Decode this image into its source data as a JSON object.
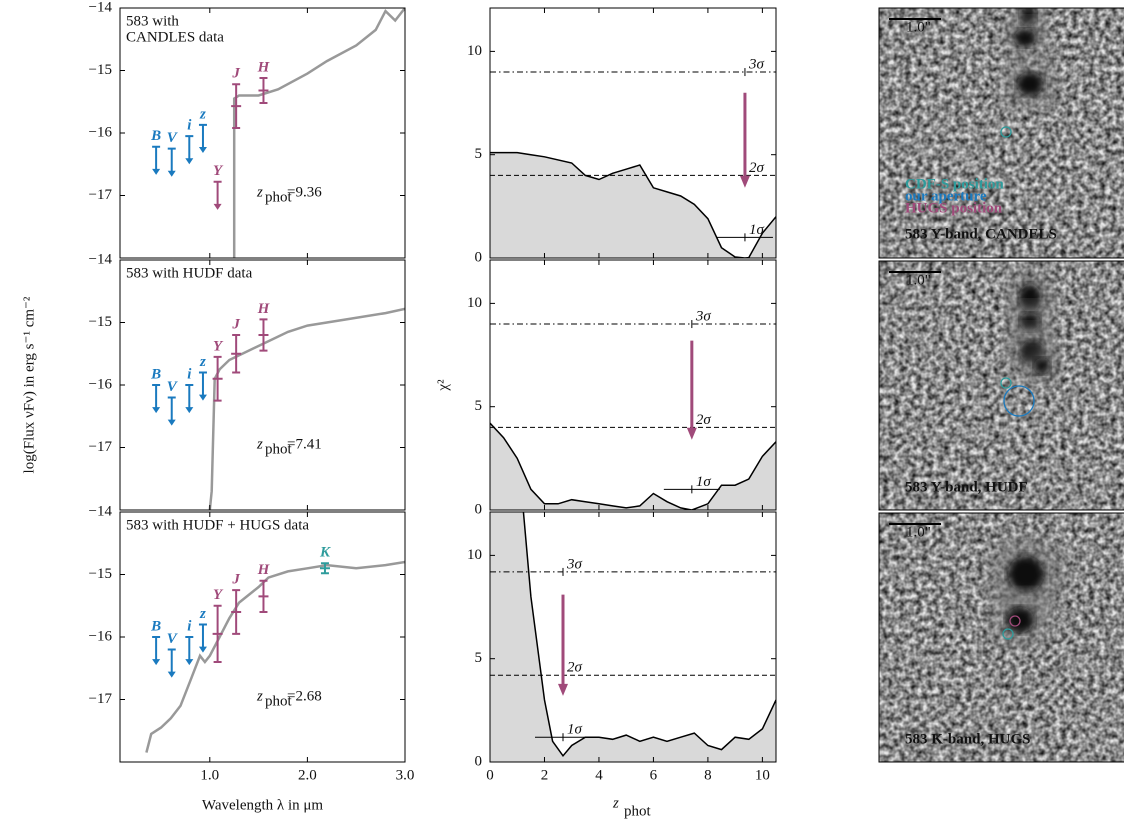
{
  "chart_data": [
    {
      "type": "line",
      "title": [
        "583 with",
        "CANDLES data"
      ],
      "color": "#999999",
      "x": [
        1.25,
        1.25,
        1.3,
        1.5,
        1.7,
        2.0,
        2.2,
        2.5,
        2.7,
        2.8,
        2.9,
        3.0
      ],
      "values": [
        -18,
        -15.45,
        -15.4,
        -15.4,
        -15.3,
        -15.05,
        -14.85,
        -14.6,
        -14.35,
        -14.05,
        -14.2,
        -14.0
      ],
      "xlim": [
        0.08,
        3.0
      ],
      "xticks": [
        1,
        2,
        3
      ],
      "ylim": [
        -18,
        -14
      ],
      "yticks": [
        {
          "value": -17,
          "label": "−17"
        },
        {
          "value": -16,
          "label": "−16"
        },
        {
          "value": -15,
          "label": "−15"
        },
        {
          "value": -14,
          "label": "−14"
        }
      ],
      "limits": [
        {
          "band": "B",
          "x": 0.45,
          "value": -16.22,
          "color": "#1a7abf"
        },
        {
          "band": "V",
          "x": 0.61,
          "value": -16.25,
          "color": "#1a7abf"
        },
        {
          "band": "i",
          "x": 0.79,
          "value": -16.05,
          "color": "#1a7abf"
        },
        {
          "band": "z",
          "x": 0.93,
          "value": -15.87,
          "color": "#1a7abf"
        },
        {
          "band": "Y",
          "x": 1.08,
          "value": -16.78,
          "color": "#a04a7a"
        }
      ],
      "detections": [
        {
          "band": "J",
          "x": 1.27,
          "value": -15.57,
          "error": 0.35,
          "color": "#a04a7a"
        },
        {
          "band": "H",
          "x": 1.55,
          "value": -15.32,
          "error": 0.2,
          "color": "#a04a7a"
        }
      ],
      "zphot": {
        "symbol": "z",
        "sub": "phot",
        "text": "=9.36"
      }
    },
    {
      "type": "line",
      "title": [
        "583 with HUDF data"
      ],
      "color": "#999999",
      "x": [
        1.0,
        1.02,
        1.05,
        1.1,
        1.2,
        1.4,
        1.6,
        1.8,
        2.0,
        2.4,
        2.8,
        3.0
      ],
      "values": [
        -18,
        -17.7,
        -15.9,
        -15.75,
        -15.6,
        -15.45,
        -15.3,
        -15.15,
        -15.05,
        -14.95,
        -14.85,
        -14.78
      ],
      "xlim": [
        0.08,
        3.0
      ],
      "xticks": [
        1,
        2,
        3
      ],
      "ylim": [
        -18,
        -14
      ],
      "yticks": [
        {
          "value": -17,
          "label": "−17"
        },
        {
          "value": -16,
          "label": "−16"
        },
        {
          "value": -15,
          "label": "−15"
        },
        {
          "value": -14,
          "label": "−14"
        }
      ],
      "y_label": "log(Flux νFν) in erg s⁻¹ cm⁻²",
      "limits": [
        {
          "band": "B",
          "x": 0.45,
          "value": -16.0,
          "color": "#1a7abf"
        },
        {
          "band": "V",
          "x": 0.61,
          "value": -16.2,
          "color": "#1a7abf"
        },
        {
          "band": "i",
          "x": 0.79,
          "value": -16.0,
          "color": "#1a7abf"
        },
        {
          "band": "z",
          "x": 0.93,
          "value": -15.8,
          "color": "#1a7abf"
        }
      ],
      "detections": [
        {
          "band": "Y",
          "x": 1.08,
          "value": -15.9,
          "error": 0.35,
          "color": "#a04a7a"
        },
        {
          "band": "J",
          "x": 1.27,
          "value": -15.5,
          "error": 0.3,
          "color": "#a04a7a"
        },
        {
          "band": "H",
          "x": 1.55,
          "value": -15.2,
          "error": 0.25,
          "color": "#a04a7a"
        }
      ],
      "zphot": {
        "symbol": "z",
        "sub": "phot",
        "text": "=7.41"
      }
    },
    {
      "type": "line",
      "title": [
        "583 with HUDF + HUGS data"
      ],
      "color": "#999999",
      "x": [
        0.35,
        0.4,
        0.5,
        0.6,
        0.7,
        0.8,
        0.9,
        0.95,
        1.0,
        1.1,
        1.2,
        1.3,
        1.5,
        1.6,
        1.8,
        2.0,
        2.2,
        2.5,
        2.8,
        3.0
      ],
      "values": [
        -17.85,
        -17.55,
        -17.45,
        -17.3,
        -17.1,
        -16.7,
        -16.3,
        -16.4,
        -16.3,
        -16.0,
        -15.7,
        -15.45,
        -15.2,
        -15.05,
        -14.95,
        -14.9,
        -14.85,
        -14.9,
        -14.85,
        -14.8
      ],
      "xlim": [
        0.08,
        3.0
      ],
      "xticks": [
        {
          "value": 1,
          "label": "1.0"
        },
        {
          "value": 2,
          "label": "2.0"
        },
        {
          "value": 3,
          "label": "3.0"
        }
      ],
      "ylim": [
        -18,
        -14
      ],
      "yticks": [
        {
          "value": -17,
          "label": "−17"
        },
        {
          "value": -16,
          "label": "−16"
        },
        {
          "value": -15,
          "label": "−15"
        },
        {
          "value": -14,
          "label": "−14"
        }
      ],
      "x_label": "Wavelength λ in μm",
      "limits": [
        {
          "band": "B",
          "x": 0.45,
          "value": -16.0,
          "color": "#1a7abf"
        },
        {
          "band": "V",
          "x": 0.61,
          "value": -16.2,
          "color": "#1a7abf"
        },
        {
          "band": "i",
          "x": 0.79,
          "value": -16.0,
          "color": "#1a7abf"
        },
        {
          "band": "z",
          "x": 0.93,
          "value": -15.8,
          "color": "#1a7abf"
        }
      ],
      "detections": [
        {
          "band": "Y",
          "x": 1.08,
          "value": -15.95,
          "error": 0.45,
          "color": "#a04a7a"
        },
        {
          "band": "J",
          "x": 1.27,
          "value": -15.6,
          "error": 0.35,
          "color": "#a04a7a"
        },
        {
          "band": "H",
          "x": 1.55,
          "value": -15.35,
          "error": 0.25,
          "color": "#a04a7a"
        },
        {
          "band": "K",
          "x": 2.18,
          "value": -14.9,
          "error": 0.08,
          "color": "#2e9c9c"
        }
      ],
      "zphot": {
        "symbol": "z",
        "sub": "phot",
        "text": "=2.68"
      }
    },
    {
      "type": "area",
      "color": "#d9d9d9",
      "x": [
        0,
        1,
        1.5,
        2,
        3,
        3.5,
        4,
        4.5,
        5,
        5.5,
        6,
        6.5,
        7,
        7.5,
        8,
        8.5,
        9,
        9.36,
        9.5,
        10,
        10.5
      ],
      "values": [
        5.1,
        5.1,
        5.0,
        4.9,
        4.6,
        4.0,
        3.8,
        4.1,
        4.3,
        4.5,
        3.4,
        3.2,
        3.0,
        2.6,
        1.9,
        0.5,
        0.05,
        0,
        0.02,
        1.2,
        2.0
      ],
      "xlim": [
        0,
        10.5
      ],
      "xticks": [
        0,
        2,
        4,
        6,
        8,
        10
      ],
      "ylim": [
        0,
        12.1
      ],
      "yticks": [
        0,
        5,
        10
      ],
      "ref_lines": [
        {
          "label": "3σ",
          "value": 9.0,
          "style": "dashdot"
        },
        {
          "label": "2σ",
          "value": 4.0,
          "style": "dashed"
        },
        {
          "label": "1σ",
          "value": 1.0,
          "style": "solid"
        }
      ],
      "arrow": {
        "x": 9.36,
        "from": 8.0,
        "to": 3.4,
        "color": "#a04a7a"
      }
    },
    {
      "type": "area",
      "color": "#d9d9d9",
      "x": [
        0,
        0.5,
        1,
        1.5,
        2,
        2.5,
        3,
        3.5,
        4,
        4.5,
        5,
        5.5,
        6,
        6.5,
        7,
        7.41,
        8,
        8.5,
        9,
        9.5,
        10,
        10.5
      ],
      "values": [
        4.2,
        3.5,
        2.5,
        1.0,
        0.3,
        0.3,
        0.5,
        0.4,
        0.3,
        0.2,
        0.1,
        0.2,
        0.8,
        0.4,
        0.1,
        0,
        0.3,
        1.2,
        1.2,
        1.5,
        2.6,
        3.3
      ],
      "xlim": [
        0,
        10.5
      ],
      "xticks": [
        0,
        2,
        4,
        6,
        8,
        10
      ],
      "ylim": [
        0,
        12.1
      ],
      "yticks": [
        0,
        5,
        10
      ],
      "y_label": "χ²",
      "ref_lines": [
        {
          "label": "3σ",
          "value": 9.0,
          "style": "dashdot"
        },
        {
          "label": "2σ",
          "value": 4.0,
          "style": "dashed"
        },
        {
          "label": "1σ",
          "value": 1.0,
          "style": "solid"
        }
      ],
      "arrow": {
        "x": 7.41,
        "from": 8.2,
        "to": 3.4,
        "color": "#a04a7a"
      }
    },
    {
      "type": "area",
      "color": "#d9d9d9",
      "x": [
        0,
        1.2,
        1.5,
        2,
        2.3,
        2.68,
        3,
        3.5,
        4,
        4.5,
        5,
        5.5,
        6,
        6.5,
        7,
        7.5,
        8,
        8.5,
        9,
        9.5,
        10,
        10.5
      ],
      "values": [
        15,
        12.5,
        8,
        3,
        1,
        0.3,
        0.8,
        1.2,
        1.2,
        1.1,
        1.3,
        1.0,
        1.2,
        1.0,
        1.2,
        1.4,
        0.8,
        0.6,
        1.2,
        1.1,
        1.6,
        3.0
      ],
      "xlim": [
        0,
        10.5
      ],
      "xticks": [
        0,
        2,
        4,
        6,
        8,
        10
      ],
      "ylim": [
        0,
        12.1
      ],
      "yticks": [
        0,
        5,
        10
      ],
      "x_label": {
        "symbol": "z",
        "sub": "phot"
      },
      "ref_lines": [
        {
          "label": "3σ",
          "value": 9.2,
          "style": "dashdot"
        },
        {
          "label": "2σ",
          "value": 4.2,
          "style": "dashed"
        },
        {
          "label": "1σ",
          "value": 1.2,
          "style": "solid"
        }
      ],
      "arrow": {
        "x": 2.68,
        "from": 8.1,
        "to": 3.2,
        "color": "#a04a7a"
      }
    }
  ],
  "images": [
    {
      "label": "583 Y-band, CANDELS",
      "scale": "1.0\"",
      "legend": [
        {
          "text": "CDF-S position",
          "color": "#2e9c9c"
        },
        {
          "text": "our aperture",
          "color": "#1a7abf"
        },
        {
          "text": "HUGS position",
          "color": "#a04a7a"
        }
      ]
    },
    {
      "label": "583 Y-band, HUDF",
      "scale": "1.0\""
    },
    {
      "label": "583 K-band, HUGS",
      "scale": "1.0\""
    }
  ]
}
